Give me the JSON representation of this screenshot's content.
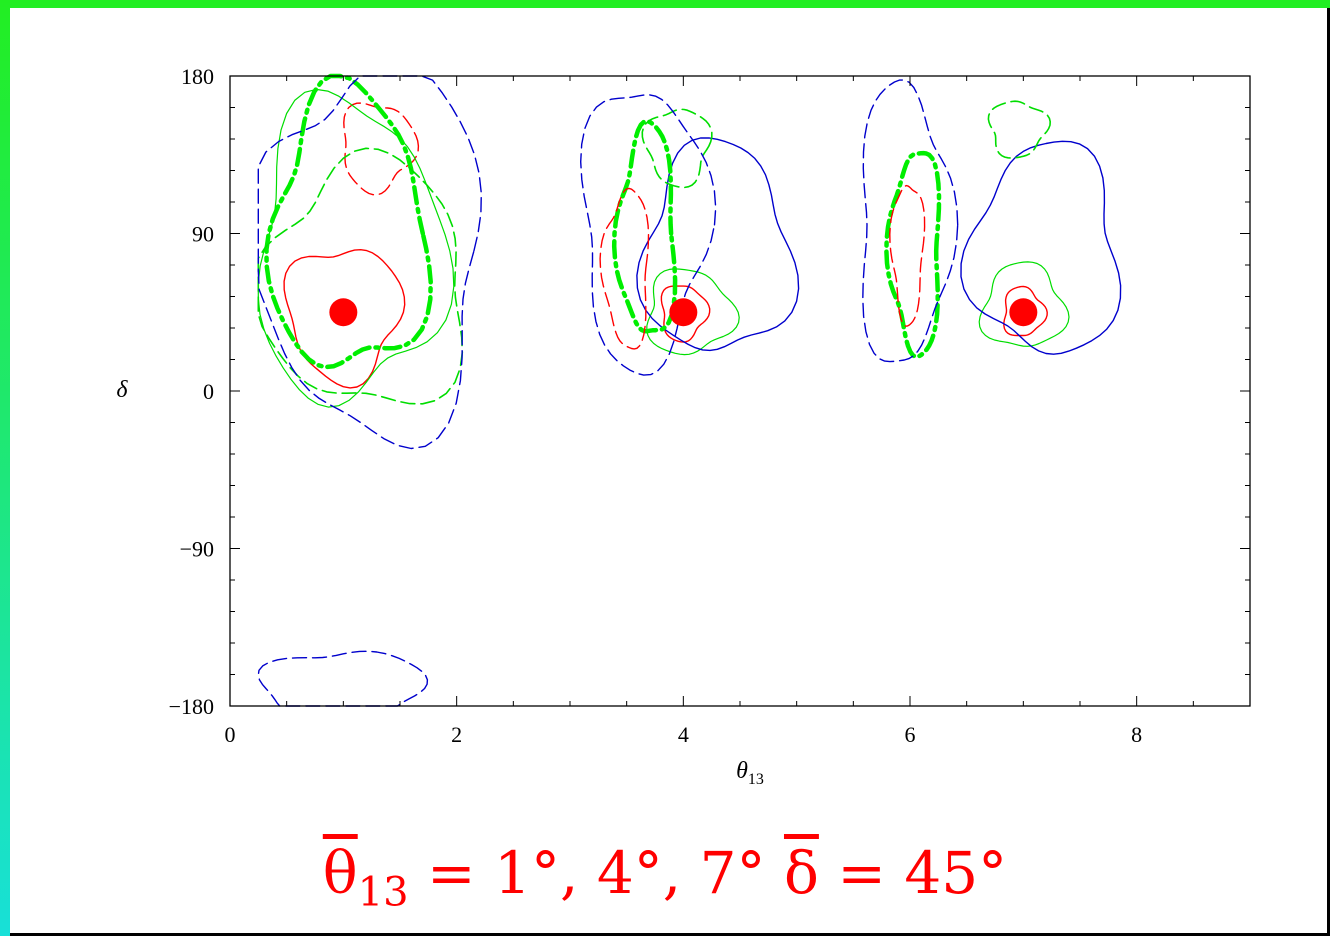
{
  "chart_data": {
    "type": "scatter",
    "xlabel": "θ13",
    "ylabel": "δ",
    "xlim": [
      0,
      9
    ],
    "ylim": [
      -180,
      180
    ],
    "x_ticks": [
      0,
      2,
      4,
      6,
      8
    ],
    "y_ticks": [
      -180,
      -90,
      0,
      90,
      180
    ],
    "x_tick_labels": [
      "0",
      "2",
      "4",
      "6",
      "8"
    ],
    "y_tick_labels": [
      "−180",
      "−90",
      "0",
      "90",
      "180"
    ],
    "points": [
      {
        "x": 1,
        "y": 45
      },
      {
        "x": 4,
        "y": 45
      },
      {
        "x": 7,
        "y": 45
      }
    ],
    "contour_groups": [
      {
        "center": [
          1,
          45
        ],
        "contours": [
          {
            "color": "#ff0000",
            "style": "solid",
            "cx": 1.0,
            "cy": 45,
            "rx": 0.5,
            "ry": 38,
            "width": 1.4
          },
          {
            "color": "#ff0000",
            "style": "dashed",
            "cx": 1.3,
            "cy": 140,
            "rx": 0.32,
            "ry": 25,
            "width": 1.4
          },
          {
            "color": "#00dd00",
            "style": "solid",
            "cx": 1.05,
            "cy": 80,
            "rx": 0.82,
            "ry": 85,
            "width": 1.2
          },
          {
            "color": "#00ee00",
            "style": "dashdot-thick",
            "cx": 1.05,
            "cy": 90,
            "rx": 0.68,
            "ry": 80,
            "width": 4.5
          },
          {
            "color": "#00dd00",
            "style": "dashed",
            "cx": 1.2,
            "cy": 60,
            "rx": 0.9,
            "ry": 70,
            "width": 1.6
          },
          {
            "color": "#0000cc",
            "style": "dashed",
            "cx": 1.25,
            "cy": 80,
            "rx": 1.0,
            "ry": 105,
            "width": 1.4
          },
          {
            "color": "#0000cc",
            "style": "dashed",
            "cx": 1.0,
            "cy": -170,
            "rx": 0.7,
            "ry": 22,
            "width": 1.4
          }
        ]
      },
      {
        "center": [
          4,
          45
        ],
        "contours": [
          {
            "color": "#ff0000",
            "style": "solid",
            "cx": 4.0,
            "cy": 45,
            "rx": 0.2,
            "ry": 16,
            "width": 1.4
          },
          {
            "color": "#00dd00",
            "style": "solid",
            "cx": 4.05,
            "cy": 45,
            "rx": 0.38,
            "ry": 24,
            "width": 1.2
          },
          {
            "color": "#0000cc",
            "style": "solid",
            "cx": 4.3,
            "cy": 80,
            "rx": 0.65,
            "ry": 60,
            "width": 1.4
          },
          {
            "color": "#00ee00",
            "style": "dashdot-thick",
            "cx": 3.68,
            "cy": 90,
            "rx": 0.25,
            "ry": 60,
            "width": 4.5
          },
          {
            "color": "#ff0000",
            "style": "dashed",
            "cx": 3.5,
            "cy": 70,
            "rx": 0.2,
            "ry": 45,
            "width": 1.4
          },
          {
            "color": "#00dd00",
            "style": "dashed",
            "cx": 3.95,
            "cy": 140,
            "rx": 0.28,
            "ry": 22,
            "width": 1.6
          },
          {
            "color": "#0000cc",
            "style": "dashed",
            "cx": 3.65,
            "cy": 95,
            "rx": 0.55,
            "ry": 80,
            "width": 1.4
          }
        ]
      },
      {
        "center": [
          7,
          45
        ],
        "contours": [
          {
            "color": "#ff0000",
            "style": "solid",
            "cx": 7.0,
            "cy": 45,
            "rx": 0.18,
            "ry": 14,
            "width": 1.4
          },
          {
            "color": "#00dd00",
            "style": "solid",
            "cx": 7.0,
            "cy": 48,
            "rx": 0.36,
            "ry": 24,
            "width": 1.2
          },
          {
            "color": "#0000cc",
            "style": "solid",
            "cx": 7.2,
            "cy": 80,
            "rx": 0.65,
            "ry": 60,
            "width": 1.4
          },
          {
            "color": "#00ee00",
            "style": "dashdot-thick",
            "cx": 6.05,
            "cy": 80,
            "rx": 0.22,
            "ry": 58,
            "width": 4.5
          },
          {
            "color": "#ff0000",
            "style": "dashed",
            "cx": 5.98,
            "cy": 80,
            "rx": 0.14,
            "ry": 40,
            "width": 1.4
          },
          {
            "color": "#00dd00",
            "style": "dashed",
            "cx": 6.95,
            "cy": 150,
            "rx": 0.25,
            "ry": 16,
            "width": 1.6
          },
          {
            "color": "#0000cc",
            "style": "dashed",
            "cx": 5.95,
            "cy": 95,
            "rx": 0.4,
            "ry": 80,
            "width": 1.4
          }
        ]
      }
    ]
  },
  "caption": "θ̄13 = 1°, 4°, 7° δ̄ = 45°",
  "colors": {
    "marker": "#ff0000",
    "caption": "#ff0000"
  }
}
